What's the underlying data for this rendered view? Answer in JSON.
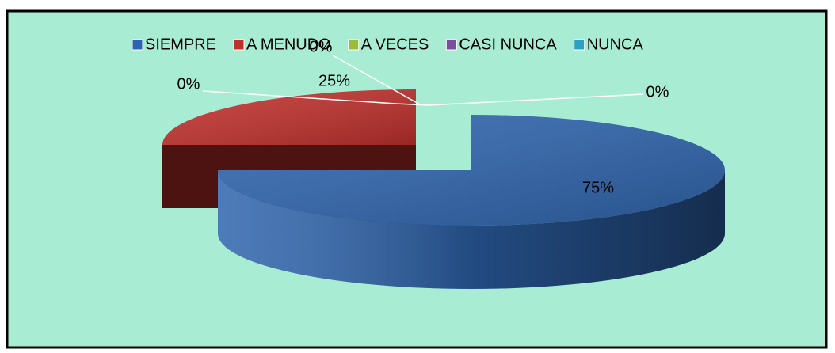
{
  "chart_data": {
    "type": "pie",
    "categories": [
      "SIEMPRE",
      "A MENUDO",
      "A VECES",
      "CASI NUNCA",
      "NUNCA"
    ],
    "values": [
      75,
      25,
      0,
      0,
      0
    ],
    "value_labels": [
      "75%",
      "25%",
      "0%",
      "0%",
      "0%"
    ],
    "colors": [
      "#2e64ad",
      "#c0302c",
      "#9bbb3b",
      "#7a4fa0",
      "#2aa3c0"
    ],
    "legend": "top"
  }
}
